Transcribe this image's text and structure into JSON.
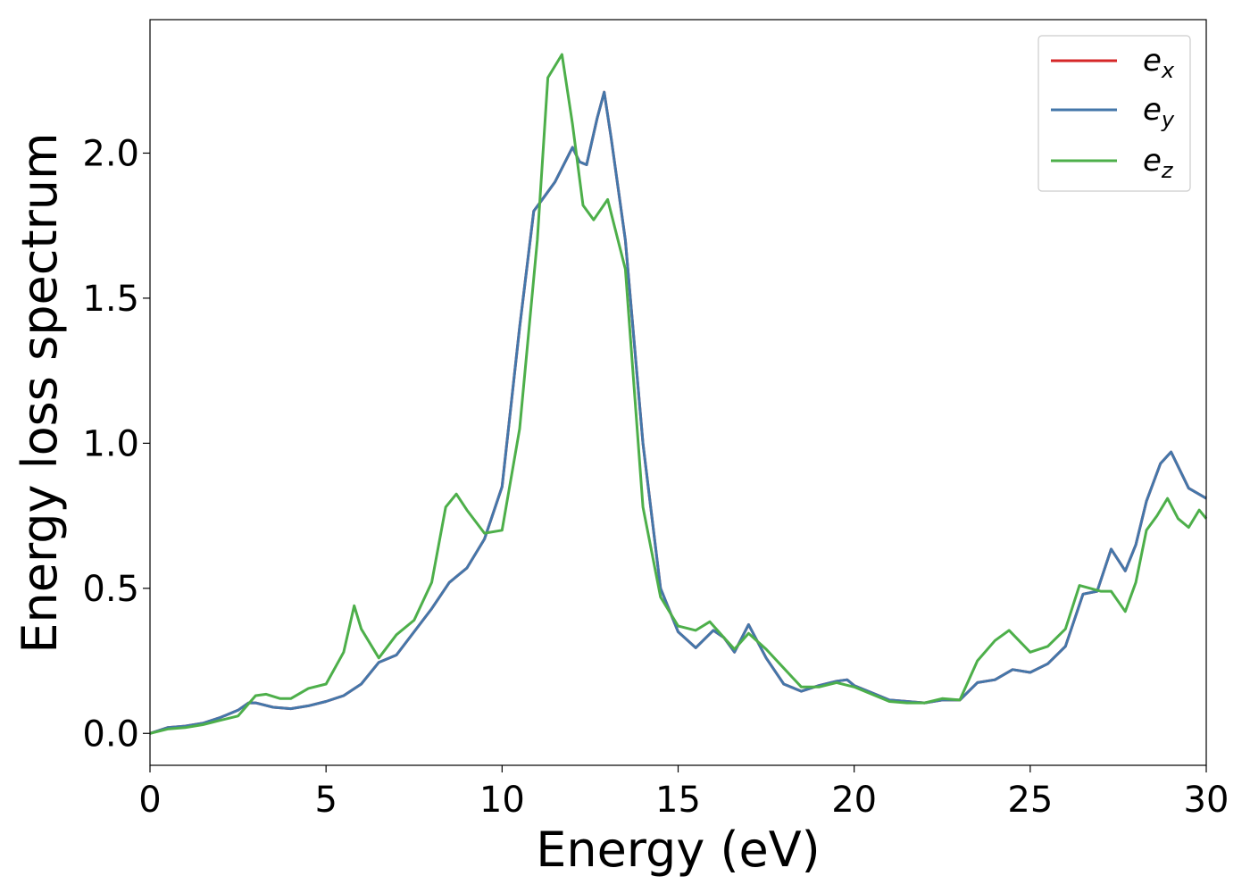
{
  "chart_data": {
    "type": "line",
    "xlabel": "Energy (eV)",
    "ylabel": "Energy loss spectrum",
    "xlim": [
      0,
      30
    ],
    "ylim": [
      -0.11,
      2.46
    ],
    "x_ticks": [
      0,
      5,
      10,
      15,
      20,
      25,
      30
    ],
    "y_ticks": [
      0.0,
      0.5,
      1.0,
      1.5,
      2.0
    ],
    "x_tick_labels": [
      "0",
      "5",
      "10",
      "15",
      "20",
      "25",
      "30"
    ],
    "y_tick_labels": [
      "0.0",
      "0.5",
      "1.0",
      "1.5",
      "2.0"
    ],
    "grid": false,
    "legend_position": "top-right",
    "series": [
      {
        "name": "ex",
        "label_base": "e",
        "label_sub": "x",
        "color": "#d62728",
        "points": [
          [
            0,
            0.0
          ],
          [
            0.5,
            0.02
          ],
          [
            1.0,
            0.025
          ],
          [
            1.5,
            0.035
          ],
          [
            2.0,
            0.055
          ],
          [
            2.5,
            0.08
          ],
          [
            2.8,
            0.105
          ],
          [
            3.0,
            0.105
          ],
          [
            3.5,
            0.09
          ],
          [
            4.0,
            0.085
          ],
          [
            4.5,
            0.095
          ],
          [
            5.0,
            0.11
          ],
          [
            5.5,
            0.13
          ],
          [
            6.0,
            0.17
          ],
          [
            6.5,
            0.245
          ],
          [
            7.0,
            0.27
          ],
          [
            7.5,
            0.35
          ],
          [
            8.0,
            0.43
          ],
          [
            8.5,
            0.52
          ],
          [
            9.0,
            0.57
          ],
          [
            9.5,
            0.67
          ],
          [
            10.0,
            0.85
          ],
          [
            10.5,
            1.4
          ],
          [
            10.9,
            1.8
          ],
          [
            11.2,
            1.85
          ],
          [
            11.5,
            1.9
          ],
          [
            12.0,
            2.02
          ],
          [
            12.2,
            1.97
          ],
          [
            12.4,
            1.96
          ],
          [
            12.7,
            2.12
          ],
          [
            12.9,
            2.21
          ],
          [
            13.1,
            2.05
          ],
          [
            13.5,
            1.7
          ],
          [
            14.0,
            1.0
          ],
          [
            14.5,
            0.5
          ],
          [
            15.0,
            0.35
          ],
          [
            15.5,
            0.295
          ],
          [
            16.0,
            0.355
          ],
          [
            16.3,
            0.33
          ],
          [
            16.6,
            0.28
          ],
          [
            17.0,
            0.375
          ],
          [
            17.5,
            0.26
          ],
          [
            18.0,
            0.17
          ],
          [
            18.5,
            0.145
          ],
          [
            19.0,
            0.165
          ],
          [
            19.5,
            0.18
          ],
          [
            19.8,
            0.185
          ],
          [
            20.0,
            0.165
          ],
          [
            20.5,
            0.14
          ],
          [
            21.0,
            0.115
          ],
          [
            21.5,
            0.11
          ],
          [
            22.0,
            0.105
          ],
          [
            22.5,
            0.115
          ],
          [
            23.0,
            0.115
          ],
          [
            23.5,
            0.175
          ],
          [
            24.0,
            0.185
          ],
          [
            24.5,
            0.22
          ],
          [
            25.0,
            0.21
          ],
          [
            25.5,
            0.24
          ],
          [
            26.0,
            0.3
          ],
          [
            26.5,
            0.48
          ],
          [
            26.9,
            0.49
          ],
          [
            27.3,
            0.635
          ],
          [
            27.7,
            0.56
          ],
          [
            28.0,
            0.65
          ],
          [
            28.3,
            0.8
          ],
          [
            28.7,
            0.93
          ],
          [
            29.0,
            0.97
          ],
          [
            29.5,
            0.845
          ],
          [
            30.0,
            0.81
          ]
        ]
      },
      {
        "name": "ey",
        "label_base": "e",
        "label_sub": "y",
        "color": "#4477aa",
        "points": [
          [
            0,
            0.0
          ],
          [
            0.5,
            0.02
          ],
          [
            1.0,
            0.025
          ],
          [
            1.5,
            0.035
          ],
          [
            2.0,
            0.055
          ],
          [
            2.5,
            0.08
          ],
          [
            2.8,
            0.105
          ],
          [
            3.0,
            0.105
          ],
          [
            3.5,
            0.09
          ],
          [
            4.0,
            0.085
          ],
          [
            4.5,
            0.095
          ],
          [
            5.0,
            0.11
          ],
          [
            5.5,
            0.13
          ],
          [
            6.0,
            0.17
          ],
          [
            6.5,
            0.245
          ],
          [
            7.0,
            0.27
          ],
          [
            7.5,
            0.35
          ],
          [
            8.0,
            0.43
          ],
          [
            8.5,
            0.52
          ],
          [
            9.0,
            0.57
          ],
          [
            9.5,
            0.67
          ],
          [
            10.0,
            0.85
          ],
          [
            10.5,
            1.4
          ],
          [
            10.9,
            1.8
          ],
          [
            11.2,
            1.85
          ],
          [
            11.5,
            1.9
          ],
          [
            12.0,
            2.02
          ],
          [
            12.2,
            1.97
          ],
          [
            12.4,
            1.96
          ],
          [
            12.7,
            2.12
          ],
          [
            12.9,
            2.21
          ],
          [
            13.1,
            2.05
          ],
          [
            13.5,
            1.7
          ],
          [
            14.0,
            1.0
          ],
          [
            14.5,
            0.5
          ],
          [
            15.0,
            0.35
          ],
          [
            15.5,
            0.295
          ],
          [
            16.0,
            0.355
          ],
          [
            16.3,
            0.33
          ],
          [
            16.6,
            0.28
          ],
          [
            17.0,
            0.375
          ],
          [
            17.5,
            0.26
          ],
          [
            18.0,
            0.17
          ],
          [
            18.5,
            0.145
          ],
          [
            19.0,
            0.165
          ],
          [
            19.5,
            0.18
          ],
          [
            19.8,
            0.185
          ],
          [
            20.0,
            0.165
          ],
          [
            20.5,
            0.14
          ],
          [
            21.0,
            0.115
          ],
          [
            21.5,
            0.11
          ],
          [
            22.0,
            0.105
          ],
          [
            22.5,
            0.115
          ],
          [
            23.0,
            0.115
          ],
          [
            23.5,
            0.175
          ],
          [
            24.0,
            0.185
          ],
          [
            24.5,
            0.22
          ],
          [
            25.0,
            0.21
          ],
          [
            25.5,
            0.24
          ],
          [
            26.0,
            0.3
          ],
          [
            26.5,
            0.48
          ],
          [
            26.9,
            0.49
          ],
          [
            27.3,
            0.635
          ],
          [
            27.7,
            0.56
          ],
          [
            28.0,
            0.65
          ],
          [
            28.3,
            0.8
          ],
          [
            28.7,
            0.93
          ],
          [
            29.0,
            0.97
          ],
          [
            29.5,
            0.845
          ],
          [
            30.0,
            0.81
          ]
        ]
      },
      {
        "name": "ez",
        "label_base": "e",
        "label_sub": "z",
        "color": "#4daf4a",
        "points": [
          [
            0,
            0.0
          ],
          [
            0.5,
            0.015
          ],
          [
            1.0,
            0.02
          ],
          [
            1.5,
            0.03
          ],
          [
            2.0,
            0.045
          ],
          [
            2.5,
            0.06
          ],
          [
            3.0,
            0.13
          ],
          [
            3.3,
            0.135
          ],
          [
            3.7,
            0.12
          ],
          [
            4.0,
            0.12
          ],
          [
            4.5,
            0.155
          ],
          [
            5.0,
            0.17
          ],
          [
            5.5,
            0.28
          ],
          [
            5.8,
            0.44
          ],
          [
            6.0,
            0.36
          ],
          [
            6.5,
            0.26
          ],
          [
            7.0,
            0.34
          ],
          [
            7.5,
            0.39
          ],
          [
            8.0,
            0.52
          ],
          [
            8.4,
            0.78
          ],
          [
            8.7,
            0.825
          ],
          [
            9.0,
            0.77
          ],
          [
            9.5,
            0.69
          ],
          [
            10.0,
            0.7
          ],
          [
            10.5,
            1.05
          ],
          [
            11.0,
            1.7
          ],
          [
            11.3,
            2.26
          ],
          [
            11.7,
            2.34
          ],
          [
            12.0,
            2.1
          ],
          [
            12.3,
            1.82
          ],
          [
            12.6,
            1.77
          ],
          [
            13.0,
            1.84
          ],
          [
            13.5,
            1.6
          ],
          [
            14.0,
            0.78
          ],
          [
            14.5,
            0.47
          ],
          [
            15.0,
            0.37
          ],
          [
            15.5,
            0.355
          ],
          [
            15.9,
            0.385
          ],
          [
            16.3,
            0.33
          ],
          [
            16.6,
            0.29
          ],
          [
            17.0,
            0.345
          ],
          [
            17.5,
            0.29
          ],
          [
            18.0,
            0.225
          ],
          [
            18.5,
            0.16
          ],
          [
            19.0,
            0.16
          ],
          [
            19.5,
            0.175
          ],
          [
            20.0,
            0.16
          ],
          [
            20.5,
            0.135
          ],
          [
            21.0,
            0.11
          ],
          [
            21.5,
            0.105
          ],
          [
            22.0,
            0.105
          ],
          [
            22.5,
            0.12
          ],
          [
            23.0,
            0.115
          ],
          [
            23.5,
            0.25
          ],
          [
            24.0,
            0.32
          ],
          [
            24.4,
            0.355
          ],
          [
            25.0,
            0.28
          ],
          [
            25.5,
            0.3
          ],
          [
            26.0,
            0.36
          ],
          [
            26.4,
            0.51
          ],
          [
            26.7,
            0.5
          ],
          [
            27.0,
            0.49
          ],
          [
            27.3,
            0.49
          ],
          [
            27.7,
            0.42
          ],
          [
            28.0,
            0.52
          ],
          [
            28.3,
            0.7
          ],
          [
            28.6,
            0.75
          ],
          [
            28.9,
            0.81
          ],
          [
            29.2,
            0.74
          ],
          [
            29.5,
            0.71
          ],
          [
            29.8,
            0.77
          ],
          [
            30.0,
            0.74
          ]
        ]
      }
    ]
  }
}
